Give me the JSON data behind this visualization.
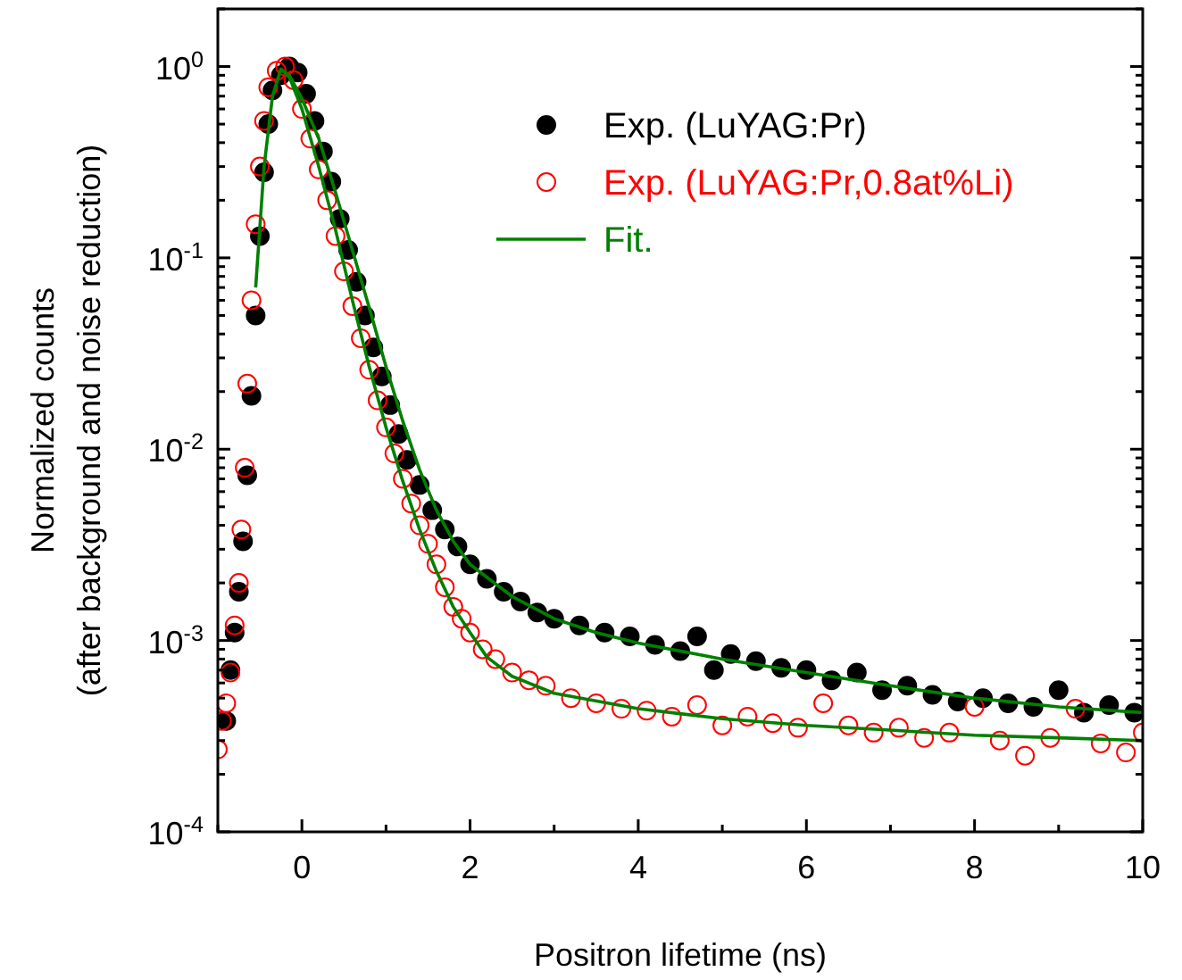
{
  "chart_data": {
    "type": "scatter",
    "xlabel": "Positron lifetime (ns)",
    "ylabel": "Normalized counts\n(after background and noise reduction)",
    "log": "y",
    "legend": "top right",
    "grid": false,
    "xlim": [
      -1,
      10
    ],
    "ylim": [
      0.0001,
      2
    ],
    "xticks": [
      {
        "value": -1,
        "label": null
      },
      0,
      {
        "value": 1,
        "label": null
      },
      2,
      {
        "value": 3,
        "label": null
      },
      4,
      {
        "value": 5,
        "label": null
      },
      6,
      {
        "value": 7,
        "label": null
      },
      8,
      {
        "value": 9,
        "label": null
      },
      10
    ],
    "yticks": [
      {
        "value": 0.0001,
        "label": "10$^{-4}$"
      },
      {
        "value": 0.0002,
        "label": null
      },
      {
        "value": 0.0003,
        "label": null
      },
      {
        "value": 0.0004,
        "label": null
      },
      {
        "value": 0.0005,
        "label": null
      },
      {
        "value": 0.0006,
        "label": null
      },
      {
        "value": 0.0007,
        "label": null
      },
      {
        "value": 0.0008,
        "label": null
      },
      {
        "value": 0.0009,
        "label": null
      },
      {
        "value": 0.001,
        "label": "10$^{-3}$"
      },
      {
        "value": 0.002,
        "label": null
      },
      {
        "value": 0.003,
        "label": null
      },
      {
        "value": 0.004,
        "label": null
      },
      {
        "value": 0.005,
        "label": null
      },
      {
        "value": 0.006,
        "label": null
      },
      {
        "value": 0.007,
        "label": null
      },
      {
        "value": 0.008,
        "label": null
      },
      {
        "value": 0.009,
        "label": null
      },
      {
        "value": 0.01,
        "label": "10$^{-2}$"
      },
      {
        "value": 0.02,
        "label": null
      },
      {
        "value": 0.03,
        "label": null
      },
      {
        "value": 0.04,
        "label": null
      },
      {
        "value": 0.05,
        "label": null
      },
      {
        "value": 0.06,
        "label": null
      },
      {
        "value": 0.07,
        "label": null
      },
      {
        "value": 0.08,
        "label": null
      },
      {
        "value": 0.09,
        "label": null
      },
      {
        "value": 0.1,
        "label": "10$^{-1}$"
      },
      {
        "value": 0.2,
        "label": null
      },
      {
        "value": 0.3,
        "label": null
      },
      {
        "value": 0.4,
        "label": null
      },
      {
        "value": 0.5,
        "label": null
      },
      {
        "value": 0.6,
        "label": null
      },
      {
        "value": 0.7,
        "label": null
      },
      {
        "value": 0.8,
        "label": null
      },
      {
        "value": 0.9,
        "label": null
      },
      {
        "value": 1,
        "label": "10$^{0}$"
      },
      {
        "value": 2,
        "label": null
      }
    ],
    "series": [
      {
        "name": "Exp. (LuYAG:Pr)",
        "marker": "circle",
        "color": "#000000",
        "x": [
          -0.9,
          -0.85,
          -0.8,
          -0.75,
          -0.7,
          -0.65,
          -0.6,
          -0.55,
          -0.5,
          -0.45,
          -0.4,
          -0.35,
          -0.25,
          -0.15,
          -0.05,
          0.05,
          0.15,
          0.25,
          0.35,
          0.45,
          0.55,
          0.65,
          0.75,
          0.85,
          0.95,
          1.05,
          1.15,
          1.25,
          1.4,
          1.55,
          1.7,
          1.85,
          2.0,
          2.2,
          2.4,
          2.6,
          2.8,
          3.0,
          3.3,
          3.6,
          3.9,
          4.2,
          4.5,
          4.7,
          4.9,
          5.1,
          5.4,
          5.7,
          6.0,
          6.3,
          6.6,
          6.9,
          7.2,
          7.5,
          7.8,
          8.1,
          8.4,
          8.7,
          9.0,
          9.3,
          9.6,
          9.9
        ],
        "values": [
          0.00038,
          0.0007,
          0.0011,
          0.0018,
          0.0033,
          0.0073,
          0.019,
          0.05,
          0.13,
          0.28,
          0.5,
          0.75,
          0.9,
          1.0,
          0.93,
          0.72,
          0.52,
          0.36,
          0.25,
          0.16,
          0.11,
          0.075,
          0.05,
          0.034,
          0.024,
          0.017,
          0.012,
          0.0088,
          0.0065,
          0.0048,
          0.0038,
          0.0031,
          0.0025,
          0.0021,
          0.0018,
          0.0016,
          0.0014,
          0.0013,
          0.0012,
          0.0011,
          0.00105,
          0.00095,
          0.00088,
          0.00105,
          0.0007,
          0.00085,
          0.00078,
          0.00072,
          0.0007,
          0.00062,
          0.00068,
          0.00055,
          0.00058,
          0.00052,
          0.00048,
          0.0005,
          0.00047,
          0.00045,
          0.00055,
          0.00042,
          0.00046,
          0.00042
        ]
      },
      {
        "name": "Exp. (LuYAG:Pr,0.8at%Li)",
        "marker": "circle",
        "color": "#ff0000",
        "x": [
          -1.0,
          -0.95,
          -0.9,
          -0.85,
          -0.8,
          -0.75,
          -0.72,
          -0.68,
          -0.65,
          -0.6,
          -0.55,
          -0.5,
          -0.45,
          -0.4,
          -0.3,
          -0.2,
          -0.1,
          0.0,
          0.1,
          0.2,
          0.3,
          0.4,
          0.5,
          0.6,
          0.7,
          0.8,
          0.9,
          1.0,
          1.1,
          1.2,
          1.3,
          1.4,
          1.5,
          1.6,
          1.7,
          1.8,
          1.9,
          2.0,
          2.15,
          2.3,
          2.5,
          2.7,
          2.9,
          3.2,
          3.5,
          3.8,
          4.1,
          4.4,
          4.7,
          5.0,
          5.3,
          5.6,
          5.9,
          6.2,
          6.5,
          6.8,
          7.1,
          7.4,
          7.7,
          8.0,
          8.3,
          8.6,
          8.9,
          9.2,
          9.5,
          9.8,
          10.0
        ],
        "values": [
          0.00027,
          0.00038,
          0.00047,
          0.00068,
          0.0012,
          0.002,
          0.0038,
          0.008,
          0.022,
          0.06,
          0.15,
          0.3,
          0.52,
          0.78,
          0.95,
          1.0,
          0.85,
          0.6,
          0.42,
          0.29,
          0.2,
          0.13,
          0.085,
          0.056,
          0.038,
          0.026,
          0.018,
          0.013,
          0.0095,
          0.007,
          0.0052,
          0.004,
          0.0032,
          0.0025,
          0.0019,
          0.0015,
          0.0013,
          0.0011,
          0.0009,
          0.0008,
          0.00068,
          0.00062,
          0.00058,
          0.0005,
          0.00047,
          0.00044,
          0.00043,
          0.0004,
          0.00046,
          0.00036,
          0.0004,
          0.00037,
          0.00035,
          0.00047,
          0.00036,
          0.00033,
          0.00035,
          0.00031,
          0.00033,
          0.00045,
          0.0003,
          0.00025,
          0.00031,
          0.00044,
          0.00029,
          0.00026,
          0.00033
        ]
      },
      {
        "name": "Fit.",
        "type": "line",
        "line_style": "solid",
        "color": "#008000",
        "x": [
          -0.55,
          -0.45,
          -0.35,
          -0.25,
          -0.15,
          0,
          0.2,
          0.4,
          0.6,
          0.8,
          1.0,
          1.2,
          1.4,
          1.6,
          1.8,
          2.0,
          2.5,
          3,
          3.5,
          4,
          5,
          6,
          7,
          8,
          9,
          10
        ],
        "values": [
          0.07,
          0.3,
          0.7,
          0.97,
          0.9,
          0.68,
          0.42,
          0.22,
          0.11,
          0.055,
          0.027,
          0.014,
          0.0078,
          0.0048,
          0.0033,
          0.0025,
          0.0017,
          0.0013,
          0.0011,
          0.00097,
          0.0008,
          0.00068,
          0.00058,
          0.0005,
          0.00045,
          0.00042
        ]
      },
      {
        "type": "line",
        "line_style": "solid",
        "color": "#008000",
        "x": [
          -0.25,
          -0.15,
          0,
          0.2,
          0.4,
          0.6,
          0.8,
          1.0,
          1.2,
          1.4,
          1.6,
          1.8,
          2.0,
          2.2,
          2.5,
          3,
          4,
          5,
          6,
          7,
          8,
          9,
          10
        ],
        "values": [
          0.97,
          0.88,
          0.6,
          0.3,
          0.14,
          0.06,
          0.027,
          0.013,
          0.0068,
          0.0038,
          0.0023,
          0.0015,
          0.0011,
          0.00082,
          0.00065,
          0.00053,
          0.00044,
          0.00039,
          0.00036,
          0.00034,
          0.00032,
          0.00031,
          0.0003
        ]
      }
    ]
  }
}
